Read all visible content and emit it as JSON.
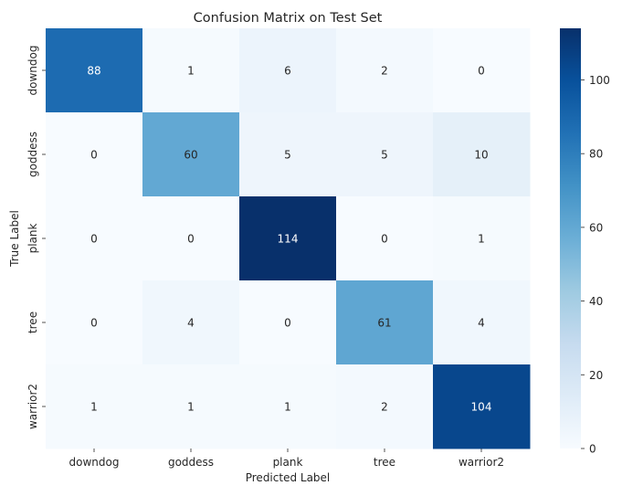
{
  "chart_data": {
    "type": "heatmap",
    "title": "Confusion Matrix on Test Set",
    "xlabel": "Predicted Label",
    "ylabel": "True Label",
    "x_categories": [
      "downdog",
      "goddess",
      "plank",
      "tree",
      "warrior2"
    ],
    "y_categories": [
      "downdog",
      "goddess",
      "plank",
      "tree",
      "warrior2"
    ],
    "values": [
      [
        88,
        1,
        6,
        2,
        0
      ],
      [
        0,
        60,
        5,
        5,
        10
      ],
      [
        0,
        0,
        114,
        0,
        1
      ],
      [
        0,
        4,
        0,
        61,
        4
      ],
      [
        1,
        1,
        1,
        2,
        104
      ]
    ],
    "colormap": "Blues",
    "colorbar_range": [
      0,
      114
    ],
    "colorbar_ticks": [
      0,
      20,
      40,
      60,
      80,
      100
    ],
    "annotations": true
  }
}
